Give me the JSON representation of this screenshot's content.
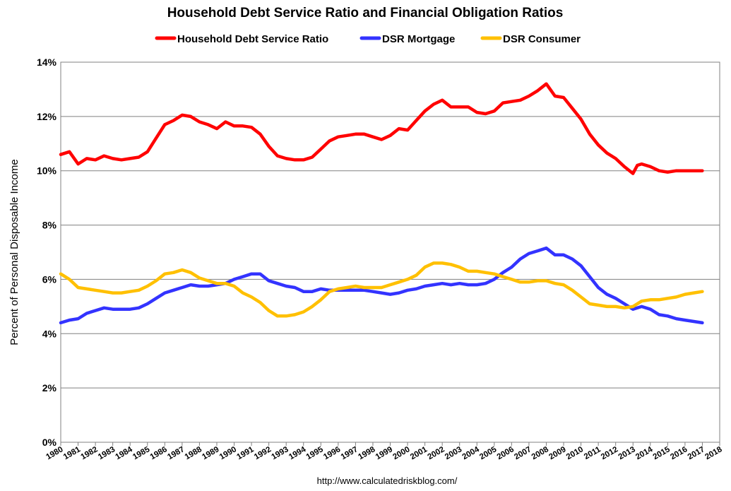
{
  "chart_data": {
    "type": "line",
    "title": "Household Debt Service Ratio and Financial Obligation Ratios",
    "xlabel": "",
    "ylabel": "Percent of Personal Disposable Income",
    "source": "http://www.calculatedriskblog.com/",
    "xlim": [
      1980,
      2018
    ],
    "ylim": [
      0,
      14
    ],
    "grid": true,
    "legend_position": "top-center",
    "x_ticks": [
      1980,
      1981,
      1982,
      1983,
      1984,
      1985,
      1986,
      1987,
      1988,
      1989,
      1990,
      1991,
      1992,
      1993,
      1994,
      1995,
      1996,
      1997,
      1998,
      1999,
      2000,
      2001,
      2002,
      2003,
      2004,
      2005,
      2006,
      2007,
      2008,
      2009,
      2010,
      2011,
      2012,
      2013,
      2014,
      2015,
      2016,
      2017,
      2018
    ],
    "y_ticks": [
      0,
      2,
      4,
      6,
      8,
      10,
      12,
      14
    ],
    "y_tick_labels": [
      "0%",
      "2%",
      "4%",
      "6%",
      "8%",
      "10%",
      "12%",
      "14%"
    ],
    "series": [
      {
        "name": "Household Debt Service Ratio",
        "color": "#ff0000",
        "x": [
          1980.0,
          1980.5,
          1981.0,
          1981.5,
          1982.0,
          1982.5,
          1983.0,
          1983.5,
          1984.0,
          1984.5,
          1985.0,
          1985.5,
          1986.0,
          1986.5,
          1987.0,
          1987.5,
          1988.0,
          1988.5,
          1989.0,
          1989.5,
          1990.0,
          1990.5,
          1991.0,
          1991.5,
          1992.0,
          1992.5,
          1993.0,
          1993.5,
          1994.0,
          1994.5,
          1995.0,
          1995.5,
          1996.0,
          1996.5,
          1997.0,
          1997.5,
          1998.0,
          1998.5,
          1999.0,
          1999.5,
          2000.0,
          2000.5,
          2001.0,
          2001.5,
          2002.0,
          2002.5,
          2003.0,
          2003.5,
          2004.0,
          2004.5,
          2005.0,
          2005.5,
          2006.0,
          2006.5,
          2007.0,
          2007.5,
          2008.0,
          2008.5,
          2009.0,
          2009.5,
          2010.0,
          2010.5,
          2011.0,
          2011.5,
          2012.0,
          2012.5,
          2013.0,
          2013.25,
          2013.5,
          2014.0,
          2014.5,
          2015.0,
          2015.5,
          2016.0,
          2016.5,
          2017.0
        ],
        "values": [
          10.6,
          10.7,
          10.25,
          10.45,
          10.4,
          10.55,
          10.45,
          10.4,
          10.45,
          10.5,
          10.7,
          11.2,
          11.7,
          11.85,
          12.05,
          12.0,
          11.8,
          11.7,
          11.55,
          11.8,
          11.65,
          11.65,
          11.6,
          11.35,
          10.9,
          10.55,
          10.45,
          10.4,
          10.4,
          10.5,
          10.8,
          11.1,
          11.25,
          11.3,
          11.35,
          11.35,
          11.25,
          11.15,
          11.3,
          11.55,
          11.5,
          11.85,
          12.2,
          12.45,
          12.6,
          12.35,
          12.35,
          12.35,
          12.15,
          12.1,
          12.2,
          12.5,
          12.55,
          12.6,
          12.75,
          12.95,
          13.2,
          12.75,
          12.7,
          12.3,
          11.9,
          11.35,
          10.95,
          10.65,
          10.45,
          10.15,
          9.9,
          10.2,
          10.25,
          10.15,
          10.0,
          9.95,
          10.0,
          10.0,
          10.0,
          10.0
        ]
      },
      {
        "name": "DSR Mortgage",
        "color": "#3333ff",
        "x": [
          1980.0,
          1980.5,
          1981.0,
          1981.5,
          1982.0,
          1982.5,
          1983.0,
          1983.5,
          1984.0,
          1984.5,
          1985.0,
          1985.5,
          1986.0,
          1986.5,
          1987.0,
          1987.5,
          1988.0,
          1988.5,
          1989.0,
          1989.5,
          1990.0,
          1990.5,
          1991.0,
          1991.5,
          1992.0,
          1992.5,
          1993.0,
          1993.5,
          1994.0,
          1994.5,
          1995.0,
          1995.5,
          1996.0,
          1996.5,
          1997.0,
          1997.5,
          1998.0,
          1998.5,
          1999.0,
          1999.5,
          2000.0,
          2000.5,
          2001.0,
          2001.5,
          2002.0,
          2002.5,
          2003.0,
          2003.5,
          2004.0,
          2004.5,
          2005.0,
          2005.5,
          2006.0,
          2006.5,
          2007.0,
          2007.5,
          2008.0,
          2008.5,
          2009.0,
          2009.5,
          2010.0,
          2010.5,
          2011.0,
          2011.5,
          2012.0,
          2012.5,
          2013.0,
          2013.5,
          2014.0,
          2014.5,
          2015.0,
          2015.5,
          2016.0,
          2016.5,
          2017.0
        ],
        "values": [
          4.4,
          4.5,
          4.55,
          4.75,
          4.85,
          4.95,
          4.9,
          4.9,
          4.9,
          4.95,
          5.1,
          5.3,
          5.5,
          5.6,
          5.7,
          5.8,
          5.75,
          5.75,
          5.8,
          5.85,
          6.0,
          6.1,
          6.2,
          6.2,
          5.95,
          5.85,
          5.75,
          5.7,
          5.55,
          5.55,
          5.65,
          5.6,
          5.6,
          5.6,
          5.6,
          5.6,
          5.55,
          5.5,
          5.45,
          5.5,
          5.6,
          5.65,
          5.75,
          5.8,
          5.85,
          5.8,
          5.85,
          5.8,
          5.8,
          5.85,
          6.0,
          6.25,
          6.45,
          6.75,
          6.95,
          7.05,
          7.15,
          6.9,
          6.9,
          6.75,
          6.5,
          6.1,
          5.7,
          5.45,
          5.3,
          5.1,
          4.9,
          5.0,
          4.9,
          4.7,
          4.65,
          4.55,
          4.5,
          4.45,
          4.4
        ]
      },
      {
        "name": "DSR Consumer",
        "color": "#ffc000",
        "x": [
          1980.0,
          1980.5,
          1981.0,
          1981.5,
          1982.0,
          1982.5,
          1983.0,
          1983.5,
          1984.0,
          1984.5,
          1985.0,
          1985.5,
          1986.0,
          1986.5,
          1987.0,
          1987.5,
          1988.0,
          1988.5,
          1989.0,
          1989.5,
          1990.0,
          1990.5,
          1991.0,
          1991.5,
          1992.0,
          1992.5,
          1993.0,
          1993.5,
          1994.0,
          1994.5,
          1995.0,
          1995.5,
          1996.0,
          1996.5,
          1997.0,
          1997.5,
          1998.0,
          1998.5,
          1999.0,
          1999.5,
          2000.0,
          2000.5,
          2001.0,
          2001.5,
          2002.0,
          2002.5,
          2003.0,
          2003.5,
          2004.0,
          2004.5,
          2005.0,
          2005.5,
          2006.0,
          2006.5,
          2007.0,
          2007.5,
          2008.0,
          2008.5,
          2009.0,
          2009.5,
          2010.0,
          2010.5,
          2011.0,
          2011.5,
          2012.0,
          2012.5,
          2013.0,
          2013.5,
          2014.0,
          2014.5,
          2015.0,
          2015.5,
          2016.0,
          2016.5,
          2017.0
        ],
        "values": [
          6.2,
          6.0,
          5.7,
          5.65,
          5.6,
          5.55,
          5.5,
          5.5,
          5.55,
          5.6,
          5.75,
          5.95,
          6.2,
          6.25,
          6.35,
          6.25,
          6.05,
          5.95,
          5.85,
          5.85,
          5.75,
          5.5,
          5.35,
          5.15,
          4.85,
          4.65,
          4.65,
          4.7,
          4.8,
          5.0,
          5.25,
          5.55,
          5.65,
          5.7,
          5.75,
          5.7,
          5.7,
          5.7,
          5.8,
          5.9,
          6.0,
          6.15,
          6.45,
          6.6,
          6.6,
          6.55,
          6.45,
          6.3,
          6.3,
          6.25,
          6.2,
          6.1,
          6.0,
          5.9,
          5.9,
          5.95,
          5.95,
          5.85,
          5.8,
          5.6,
          5.35,
          5.1,
          5.05,
          5.0,
          5.0,
          4.95,
          5.0,
          5.2,
          5.25,
          5.25,
          5.3,
          5.35,
          5.45,
          5.5,
          5.55
        ]
      }
    ]
  }
}
